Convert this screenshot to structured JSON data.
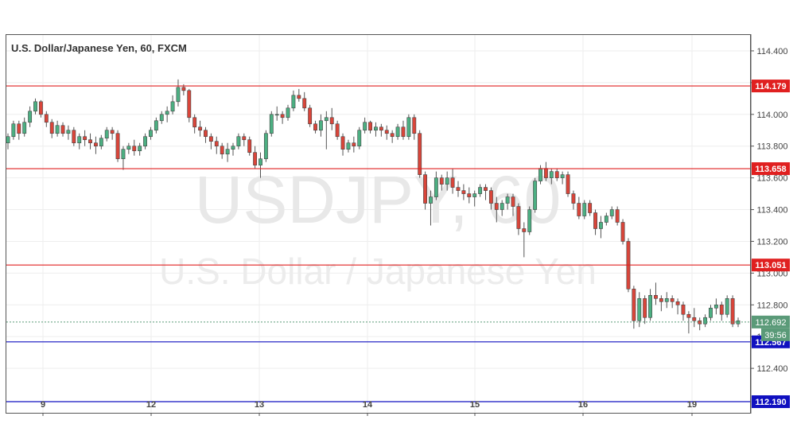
{
  "chart_data": {
    "type": "candlestick",
    "title": "U.S. Dollar/Japanese Yen, 60, FXCM",
    "watermark_symbol": "USDJPY, 60",
    "watermark_name": "U.S. Dollar / Japanese Yen",
    "ylim": [
      112.12,
      114.5
    ],
    "y_ticks": [
      "114.400",
      "114.200",
      "114.000",
      "113.800",
      "113.600",
      "113.400",
      "113.200",
      "113.000",
      "112.800",
      "112.600",
      "112.400"
    ],
    "x_ticks": [
      "9",
      "12",
      "13",
      "14",
      "15",
      "16",
      "19"
    ],
    "horizontal_lines": [
      {
        "value": 114.179,
        "label": "114.179",
        "color": "#e02020"
      },
      {
        "value": 113.658,
        "label": "113.658",
        "color": "#e02020"
      },
      {
        "value": 113.051,
        "label": "113.051",
        "color": "#e02020"
      },
      {
        "value": 112.567,
        "label": "112.567",
        "color": "#1010c0"
      },
      {
        "value": 112.19,
        "label": "112.190",
        "color": "#1010c0"
      }
    ],
    "last_price": {
      "value": 112.692,
      "label": "112.692",
      "countdown": "39:56",
      "color": "#5a9a78"
    },
    "colors": {
      "up": "#4caf82",
      "down": "#d9453a",
      "grid": "#eeeeee",
      "line": "#555555"
    },
    "candles": [
      [
        113.82,
        113.88,
        113.78,
        113.86
      ],
      [
        113.86,
        113.96,
        113.84,
        113.94
      ],
      [
        113.94,
        113.96,
        113.84,
        113.88
      ],
      [
        113.88,
        113.98,
        113.86,
        113.95
      ],
      [
        113.95,
        114.05,
        113.92,
        114.02
      ],
      [
        114.02,
        114.1,
        114.0,
        114.08
      ],
      [
        114.08,
        114.09,
        113.98,
        114.0
      ],
      [
        114.0,
        114.02,
        113.92,
        113.95
      ],
      [
        113.95,
        113.97,
        113.85,
        113.88
      ],
      [
        113.88,
        113.96,
        113.86,
        113.93
      ],
      [
        113.93,
        113.95,
        113.86,
        113.88
      ],
      [
        113.88,
        113.93,
        113.84,
        113.9
      ],
      [
        113.9,
        113.92,
        113.8,
        113.82
      ],
      [
        113.82,
        113.88,
        113.78,
        113.86
      ],
      [
        113.86,
        113.9,
        113.8,
        113.84
      ],
      [
        113.84,
        113.88,
        113.78,
        113.82
      ],
      [
        113.82,
        113.86,
        113.75,
        113.8
      ],
      [
        113.8,
        113.87,
        113.78,
        113.85
      ],
      [
        113.85,
        113.92,
        113.83,
        113.9
      ],
      [
        113.9,
        113.92,
        113.84,
        113.88
      ],
      [
        113.88,
        113.9,
        113.7,
        113.72
      ],
      [
        113.72,
        113.8,
        113.65,
        113.78
      ],
      [
        113.78,
        113.82,
        113.75,
        113.8
      ],
      [
        113.8,
        113.84,
        113.74,
        113.77
      ],
      [
        113.77,
        113.82,
        113.74,
        113.8
      ],
      [
        113.8,
        113.88,
        113.78,
        113.86
      ],
      [
        113.86,
        113.92,
        113.84,
        113.9
      ],
      [
        113.9,
        113.98,
        113.88,
        113.96
      ],
      [
        113.96,
        114.02,
        113.94,
        114.0
      ],
      [
        114.0,
        114.05,
        113.95,
        114.02
      ],
      [
        114.02,
        114.12,
        114.0,
        114.08
      ],
      [
        114.08,
        114.22,
        114.05,
        114.17
      ],
      [
        114.17,
        114.19,
        114.12,
        114.15
      ],
      [
        114.15,
        114.16,
        113.95,
        113.98
      ],
      [
        113.98,
        114.0,
        113.88,
        113.92
      ],
      [
        113.92,
        113.96,
        113.86,
        113.9
      ],
      [
        113.9,
        113.92,
        113.82,
        113.86
      ],
      [
        113.86,
        113.88,
        113.78,
        113.83
      ],
      [
        113.83,
        113.86,
        113.75,
        113.8
      ],
      [
        113.8,
        113.82,
        113.72,
        113.75
      ],
      [
        113.75,
        113.82,
        113.7,
        113.78
      ],
      [
        113.78,
        113.82,
        113.74,
        113.8
      ],
      [
        113.8,
        113.88,
        113.78,
        113.86
      ],
      [
        113.86,
        113.88,
        113.8,
        113.84
      ],
      [
        113.84,
        113.86,
        113.74,
        113.76
      ],
      [
        113.76,
        113.8,
        113.66,
        113.68
      ],
      [
        113.68,
        113.76,
        113.6,
        113.72
      ],
      [
        113.72,
        113.9,
        113.7,
        113.88
      ],
      [
        113.88,
        114.02,
        113.86,
        114.0
      ],
      [
        114.0,
        114.05,
        113.96,
        114.0
      ],
      [
        114.0,
        114.02,
        113.94,
        113.98
      ],
      [
        113.98,
        114.06,
        113.96,
        114.04
      ],
      [
        114.04,
        114.15,
        114.02,
        114.12
      ],
      [
        114.12,
        114.16,
        114.08,
        114.1
      ],
      [
        114.1,
        114.14,
        114.02,
        114.04
      ],
      [
        114.04,
        114.06,
        113.92,
        113.94
      ],
      [
        113.94,
        113.96,
        113.88,
        113.9
      ],
      [
        113.9,
        114.0,
        113.86,
        113.96
      ],
      [
        113.96,
        114.02,
        113.78,
        113.98
      ],
      [
        113.98,
        114.04,
        113.9,
        113.94
      ],
      [
        113.94,
        113.96,
        113.84,
        113.86
      ],
      [
        113.86,
        113.88,
        113.74,
        113.78
      ],
      [
        113.78,
        113.84,
        113.76,
        113.82
      ],
      [
        113.82,
        113.86,
        113.76,
        113.8
      ],
      [
        113.8,
        113.92,
        113.78,
        113.9
      ],
      [
        113.9,
        113.98,
        113.88,
        113.95
      ],
      [
        113.95,
        113.96,
        113.88,
        113.9
      ],
      [
        113.9,
        113.95,
        113.86,
        113.92
      ],
      [
        113.92,
        113.94,
        113.86,
        113.9
      ],
      [
        113.9,
        113.93,
        113.84,
        113.88
      ],
      [
        113.88,
        113.9,
        113.82,
        113.86
      ],
      [
        113.86,
        113.94,
        113.84,
        113.92
      ],
      [
        113.92,
        113.96,
        113.84,
        113.86
      ],
      [
        113.86,
        114.0,
        113.84,
        113.98
      ],
      [
        113.98,
        114.0,
        113.84,
        113.88
      ],
      [
        113.88,
        113.9,
        113.6,
        113.62
      ],
      [
        113.62,
        113.64,
        113.4,
        113.44
      ],
      [
        113.44,
        113.52,
        113.3,
        113.48
      ],
      [
        113.48,
        113.64,
        113.46,
        113.6
      ],
      [
        113.6,
        113.62,
        113.52,
        113.56
      ],
      [
        113.56,
        113.64,
        113.52,
        113.6
      ],
      [
        113.6,
        113.66,
        113.5,
        113.54
      ],
      [
        113.54,
        113.58,
        113.48,
        113.52
      ],
      [
        113.52,
        113.56,
        113.46,
        113.5
      ],
      [
        113.5,
        113.54,
        113.44,
        113.48
      ],
      [
        113.48,
        113.52,
        113.42,
        113.5
      ],
      [
        113.5,
        113.56,
        113.48,
        113.54
      ],
      [
        113.54,
        113.56,
        113.46,
        113.52
      ],
      [
        113.52,
        113.54,
        113.4,
        113.44
      ],
      [
        113.44,
        113.48,
        113.32,
        113.4
      ],
      [
        113.4,
        113.46,
        113.36,
        113.44
      ],
      [
        113.44,
        113.5,
        113.4,
        113.48
      ],
      [
        113.48,
        113.5,
        113.36,
        113.42
      ],
      [
        113.42,
        113.44,
        113.24,
        113.28
      ],
      [
        113.28,
        113.32,
        113.1,
        113.26
      ],
      [
        113.26,
        113.42,
        113.24,
        113.4
      ],
      [
        113.4,
        113.6,
        113.38,
        113.58
      ],
      [
        113.58,
        113.68,
        113.56,
        113.66
      ],
      [
        113.66,
        113.7,
        113.58,
        113.6
      ],
      [
        113.6,
        113.66,
        113.56,
        113.64
      ],
      [
        113.64,
        113.66,
        113.58,
        113.6
      ],
      [
        113.6,
        113.64,
        113.56,
        113.62
      ],
      [
        113.62,
        113.64,
        113.48,
        113.5
      ],
      [
        113.5,
        113.52,
        113.4,
        113.44
      ],
      [
        113.44,
        113.48,
        113.34,
        113.36
      ],
      [
        113.36,
        113.46,
        113.34,
        113.44
      ],
      [
        113.44,
        113.46,
        113.36,
        113.38
      ],
      [
        113.38,
        113.4,
        113.24,
        113.28
      ],
      [
        113.28,
        113.36,
        113.22,
        113.32
      ],
      [
        113.32,
        113.38,
        113.3,
        113.36
      ],
      [
        113.36,
        113.42,
        113.34,
        113.4
      ],
      [
        113.4,
        113.42,
        113.3,
        113.32
      ],
      [
        113.32,
        113.34,
        113.18,
        113.2
      ],
      [
        113.2,
        113.22,
        112.88,
        112.9
      ],
      [
        112.9,
        112.92,
        112.65,
        112.7
      ],
      [
        112.7,
        112.88,
        112.66,
        112.84
      ],
      [
        112.84,
        112.86,
        112.68,
        112.72
      ],
      [
        112.72,
        112.9,
        112.7,
        112.86
      ],
      [
        112.86,
        112.94,
        112.8,
        112.84
      ],
      [
        112.84,
        112.86,
        112.76,
        112.82
      ],
      [
        112.82,
        112.88,
        112.78,
        112.84
      ],
      [
        112.84,
        112.86,
        112.78,
        112.82
      ],
      [
        112.82,
        112.84,
        112.74,
        112.8
      ],
      [
        112.8,
        112.82,
        112.7,
        112.74
      ],
      [
        112.74,
        112.76,
        112.62,
        112.72
      ],
      [
        112.72,
        112.78,
        112.66,
        112.7
      ],
      [
        112.7,
        112.72,
        112.64,
        112.68
      ],
      [
        112.68,
        112.74,
        112.66,
        112.72
      ],
      [
        112.72,
        112.8,
        112.7,
        112.78
      ],
      [
        112.78,
        112.84,
        112.74,
        112.8
      ],
      [
        112.8,
        112.82,
        112.7,
        112.74
      ],
      [
        112.74,
        112.86,
        112.72,
        112.84
      ],
      [
        112.84,
        112.86,
        112.66,
        112.68
      ],
      [
        112.68,
        112.72,
        112.66,
        112.7
      ]
    ]
  }
}
